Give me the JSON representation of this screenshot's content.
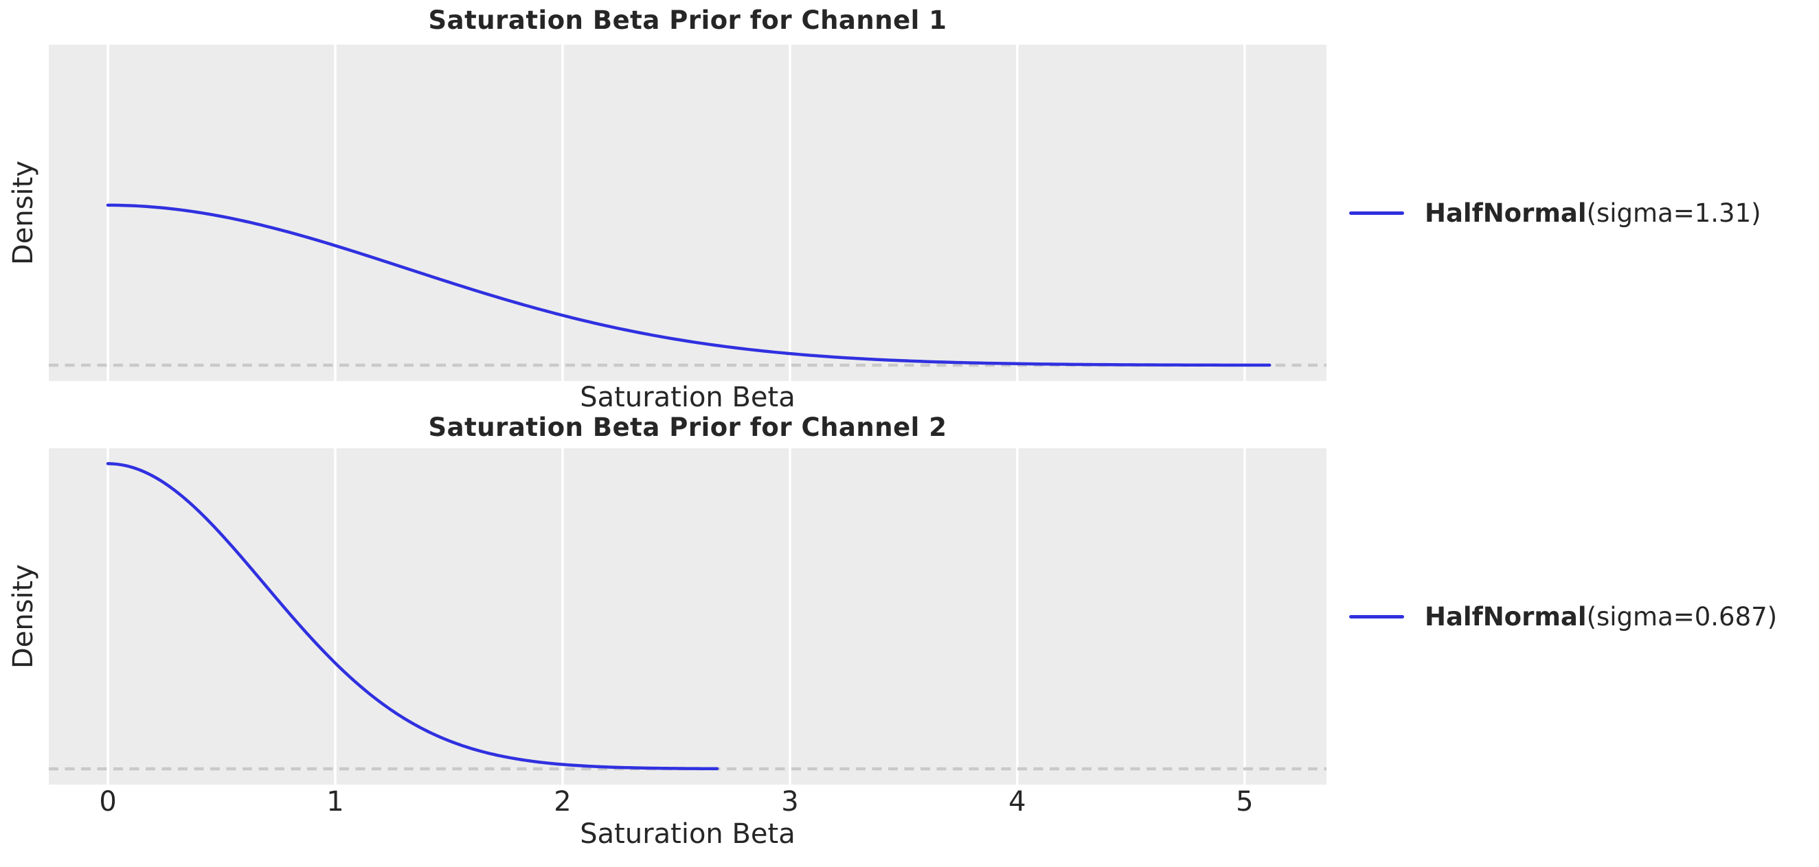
{
  "style": {
    "figure_bg": "#ffffff",
    "plot_bg": "#ececec",
    "grid_color": "#ffffff",
    "line_color": "#3030e0",
    "baseline_color": "#c9c9c9",
    "text_color": "#262626"
  },
  "chart_data": [
    {
      "type": "line",
      "title": "Saturation Beta Prior for Channel 1",
      "xlabel": "Saturation Beta",
      "ylabel": "Density",
      "xlim": [
        -0.26,
        5.36
      ],
      "ylim": [
        -0.06,
        1.22
      ],
      "x_ticks": [
        0,
        1,
        2,
        3,
        4,
        5
      ],
      "show_x_tick_labels": false,
      "grid": "vertical",
      "baseline": {
        "value": 0,
        "style": "dashed"
      },
      "legend": {
        "position": "right-center",
        "entry_bold": "HalfNormal",
        "entry_rest": "(sigma=1.31)",
        "label": "HalfNormal(sigma=1.31)"
      },
      "series": [
        {
          "name": "HalfNormal(sigma=1.31)",
          "distribution": "HalfNormal",
          "sigma": 1.31,
          "x_start": 0,
          "x_end": 5.11,
          "peak_density": 0.609,
          "points": {
            "x": [
              0,
              0.5,
              1.0,
              1.5,
              2.0,
              2.5,
              3.0,
              3.5,
              4.0,
              4.5,
              5.0,
              5.11
            ],
            "y": [
              0.609,
              0.566,
              0.455,
              0.316,
              0.19,
              0.099,
              0.044,
              0.017,
              0.006,
              0.002,
              0.0004,
              0.0003
            ]
          }
        }
      ]
    },
    {
      "type": "line",
      "title": "Saturation Beta Prior for Channel 2",
      "xlabel": "Saturation Beta",
      "ylabel": "Density",
      "xlim": [
        -0.26,
        5.36
      ],
      "ylim": [
        -0.06,
        1.22
      ],
      "x_ticks": [
        0,
        1,
        2,
        3,
        4,
        5
      ],
      "show_x_tick_labels": true,
      "grid": "vertical",
      "baseline": {
        "value": 0,
        "style": "dashed"
      },
      "legend": {
        "position": "right-center",
        "entry_bold": "HalfNormal",
        "entry_rest": "(sigma=0.687)",
        "label": "HalfNormal(sigma=0.687)"
      },
      "series": [
        {
          "name": "HalfNormal(sigma=0.687)",
          "distribution": "HalfNormal",
          "sigma": 0.687,
          "x_start": 0,
          "x_end": 2.68,
          "peak_density": 1.161,
          "points": {
            "x": [
              0,
              0.25,
              0.5,
              0.75,
              1.0,
              1.25,
              1.5,
              1.75,
              2.0,
              2.25,
              2.5,
              2.68
            ],
            "y": [
              1.161,
              1.087,
              0.891,
              0.64,
              0.403,
              0.222,
              0.107,
              0.045,
              0.017,
              0.005,
              0.002,
              0.0006
            ]
          }
        }
      ]
    }
  ]
}
